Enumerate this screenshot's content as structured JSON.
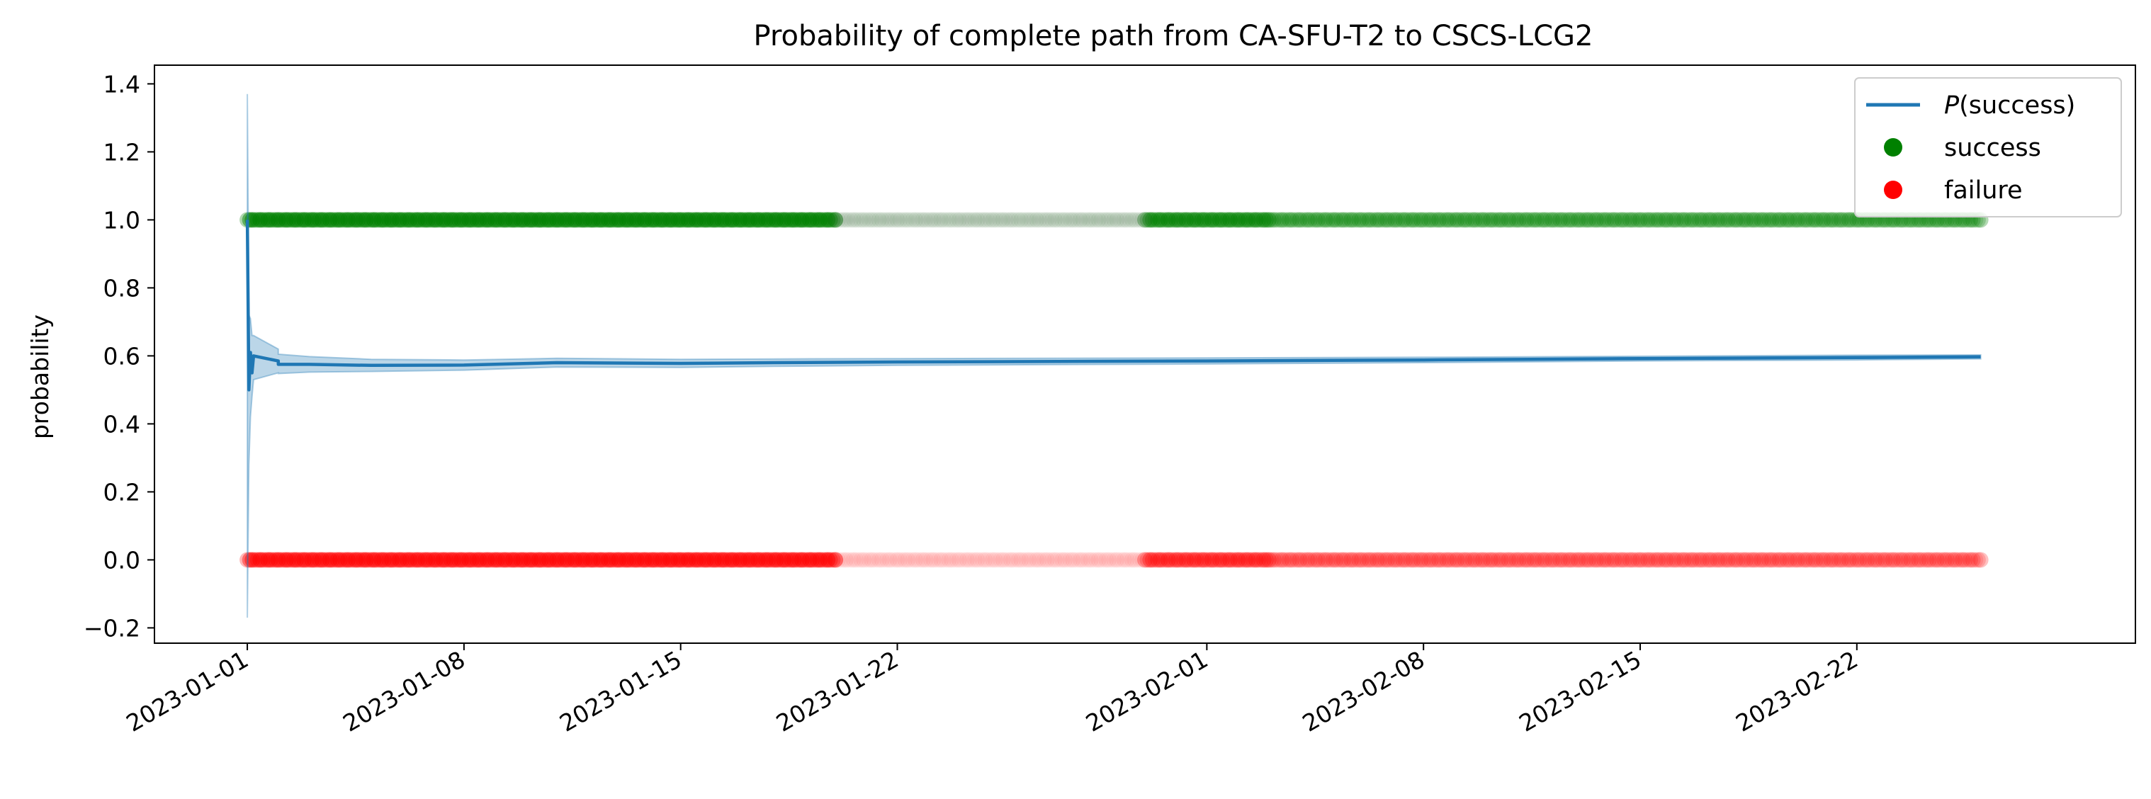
{
  "chart_data": {
    "type": "line",
    "title": "Probability of complete path from CA-SFU-T2 to CSCS-LCG2",
    "xlabel": "",
    "ylabel": "probability",
    "xlim": [
      "2022-12-29",
      "2023-03-03"
    ],
    "ylim": [
      -0.245,
      1.455
    ],
    "x_ticks": [
      "2023-01-01",
      "2023-01-08",
      "2023-01-15",
      "2023-01-22",
      "2023-02-01",
      "2023-02-08",
      "2023-02-15",
      "2023-02-22"
    ],
    "y_ticks": [
      -0.2,
      0.0,
      0.2,
      0.4,
      0.6,
      0.8,
      1.0,
      1.2,
      1.4
    ],
    "y_tick_labels": [
      "−0.2",
      "0.0",
      "0.2",
      "0.4",
      "0.6",
      "0.8",
      "1.0",
      "1.2",
      "1.4"
    ],
    "grid": false,
    "legend_position": "top-right",
    "legend": [
      {
        "label_italic": "P",
        "label_rest": "(success)",
        "marker": "line",
        "color": "#1f77b4"
      },
      {
        "label": "success",
        "marker": "dot",
        "color": "#008000"
      },
      {
        "label": "failure",
        "marker": "dot",
        "color": "#ff0000"
      }
    ],
    "series": [
      {
        "name": "P(success)",
        "color": "#1f77b4",
        "x": [
          "2023-01-01",
          "2023-01-01",
          "2023-01-01",
          "2023-01-01",
          "2023-01-01",
          "2023-01-02",
          "2023-01-02",
          "2023-01-03",
          "2023-01-05",
          "2023-01-08",
          "2023-01-11",
          "2023-01-15",
          "2023-01-18",
          "2023-01-22",
          "2023-02-01",
          "2023-02-08",
          "2023-02-15",
          "2023-02-22",
          "2023-02-26"
        ],
        "y": [
          1.0,
          0.5,
          0.61,
          0.55,
          0.6,
          0.585,
          0.575,
          0.575,
          0.572,
          0.573,
          0.58,
          0.578,
          0.58,
          0.582,
          0.585,
          0.588,
          0.592,
          0.595,
          0.597
        ],
        "band_upper": [
          1.37,
          0.72,
          0.71,
          0.66,
          0.66,
          0.62,
          0.605,
          0.598,
          0.59,
          0.588,
          0.593,
          0.59,
          0.591,
          0.592,
          0.594,
          0.596,
          0.599,
          0.602,
          0.603
        ],
        "band_lower": [
          -0.17,
          0.28,
          0.42,
          0.48,
          0.53,
          0.55,
          0.548,
          0.552,
          0.554,
          0.558,
          0.567,
          0.566,
          0.569,
          0.572,
          0.576,
          0.58,
          0.585,
          0.588,
          0.591
        ]
      },
      {
        "name": "success",
        "color": "#008000",
        "y_value": 1.0,
        "segments": [
          {
            "start": "2023-01-01",
            "end": "2023-01-20",
            "opacity": 0.9
          },
          {
            "start": "2023-01-20",
            "end": "2023-01-30",
            "opacity": 0.08
          },
          {
            "start": "2023-01-30",
            "end": "2023-02-03",
            "opacity": 0.75
          },
          {
            "start": "2023-02-03",
            "end": "2023-02-26",
            "opacity": 0.5
          }
        ]
      },
      {
        "name": "failure",
        "color": "#ff0000",
        "y_value": 0.0,
        "segments": [
          {
            "start": "2023-01-01",
            "end": "2023-01-20",
            "opacity": 0.8
          },
          {
            "start": "2023-01-20",
            "end": "2023-01-30",
            "opacity": 0.12
          },
          {
            "start": "2023-01-30",
            "end": "2023-02-03",
            "opacity": 0.6
          },
          {
            "start": "2023-02-03",
            "end": "2023-02-26",
            "opacity": 0.4
          }
        ]
      }
    ]
  }
}
